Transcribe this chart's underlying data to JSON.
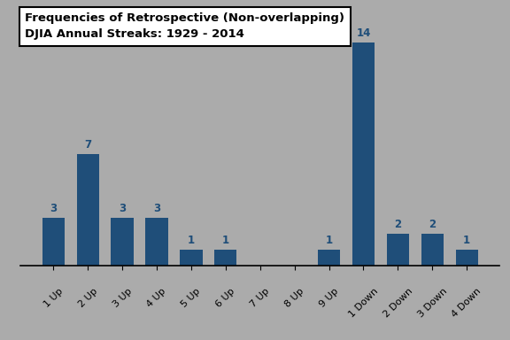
{
  "categories": [
    "1 Up",
    "2 Up",
    "3 Up",
    "4 Up",
    "5 Up",
    "6 Up",
    "7 Up",
    "8 Up",
    "9 Up",
    "1 Down",
    "2 Down",
    "3 Down",
    "4 Down"
  ],
  "values": [
    3,
    7,
    3,
    3,
    1,
    1,
    0,
    0,
    1,
    14,
    2,
    2,
    1
  ],
  "bar_color": "#1F4E79",
  "background_color": "#ABABAB",
  "title_line1": "Frequencies of Retrospective (Non-overlapping)",
  "title_line2": "DJIA Annual Streaks: 1929 - 2014",
  "title_fontsize": 9.5,
  "label_fontsize": 8.5,
  "tick_fontsize": 8,
  "bar_label_color": "#1F4E79",
  "ylim": [
    0,
    16
  ],
  "figsize": [
    5.76,
    3.84
  ],
  "dpi": 100
}
